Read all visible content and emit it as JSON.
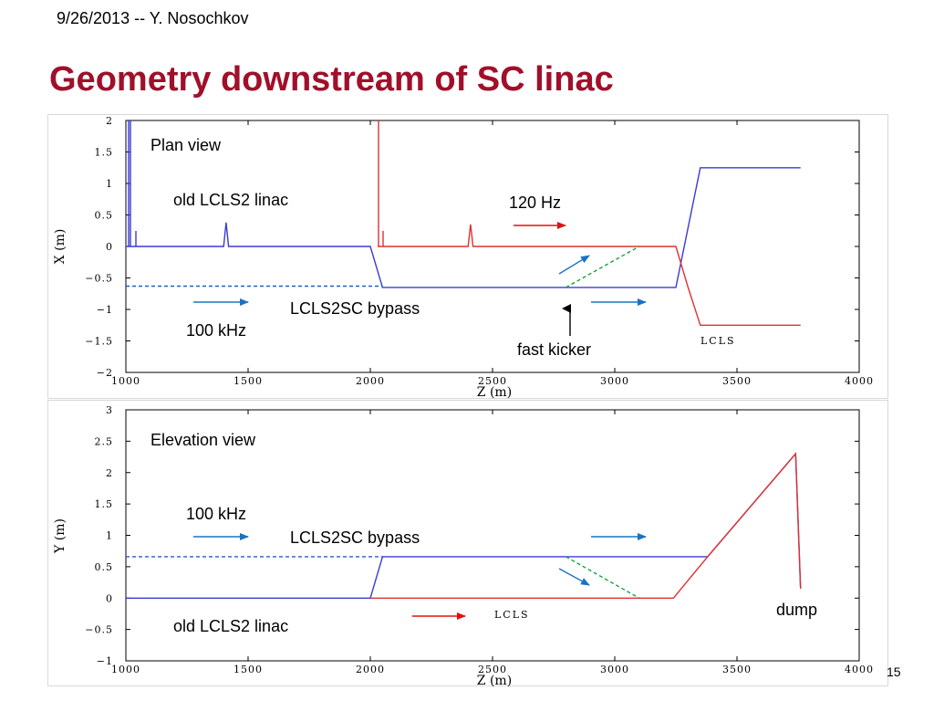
{
  "header": {
    "date_author": "9/26/2013  --  Y. Nosochkov"
  },
  "title": "Geometry downstream of SC linac",
  "page_number": "15",
  "colors": {
    "title": "#a0102a",
    "blue": "#3a3ad6",
    "red": "#e03030",
    "arrow_blue": "#1a73c2",
    "arrow_red": "#e01010",
    "dash_blue": "#1f5fc8",
    "dash_green": "#18a040"
  },
  "plan_view": {
    "panel_title": "Plan view",
    "xlabel": "Z (m)",
    "ylabel": "X (m)",
    "x_ticks": [
      "1000",
      "1500",
      "2000",
      "2500",
      "3000",
      "3500",
      "4000"
    ],
    "y_ticks": [
      "2",
      "1.5",
      "1",
      "0.5",
      "0",
      "-0.5",
      "-1",
      "-1.5",
      "-2"
    ],
    "labels": {
      "old_linac": "old LCLS2 linac",
      "rate_120": "120 Hz",
      "bypass": "LCLS2SC bypass",
      "rate_100k": "100 kHz",
      "fast_kicker": "fast kicker",
      "lcls": "LCLS"
    }
  },
  "elevation_view": {
    "panel_title": "Elevation view",
    "xlabel": "Z (m)",
    "ylabel": "Y (m)",
    "x_ticks": [
      "1000",
      "1500",
      "2000",
      "2500",
      "3000",
      "3500",
      "4000"
    ],
    "y_ticks": [
      "3",
      "2.5",
      "2",
      "1.5",
      "1",
      "0.5",
      "0",
      "-0.5",
      "-1"
    ],
    "labels": {
      "rate_100k": "100 kHz",
      "bypass": "LCLS2SC bypass",
      "old_linac": "old LCLS2 linac",
      "lcls": "LCLS",
      "dump": "dump"
    }
  },
  "chart_data": [
    {
      "type": "line",
      "title": "Plan view",
      "xlabel": "Z (m)",
      "ylabel": "X (m)",
      "xlim": [
        1000,
        4000
      ],
      "ylim": [
        -2,
        2
      ],
      "series": [
        {
          "color": "#3a3ad6",
          "x": [
            1000,
            1400,
            1410,
            1420,
            2000,
            2050,
            3250,
            3350,
            3760
          ],
          "y": [
            0,
            0,
            0.38,
            0,
            0,
            -0.65,
            -0.65,
            1.25,
            1.25
          ]
        },
        {
          "color": "#e03030",
          "x": [
            2030,
            2040,
            2400,
            2410,
            2420,
            3250,
            3300,
            3350,
            3760
          ],
          "y": [
            0,
            0,
            0,
            0.35,
            0,
            0,
            -0.65,
            -1.25,
            -1.25
          ]
        },
        {
          "color": "#1f5fc8",
          "style": "dashed",
          "x": [
            1000,
            2050
          ],
          "y": [
            -0.63,
            -0.63
          ]
        },
        {
          "color": "#18a040",
          "style": "dashed",
          "x": [
            2800,
            3100
          ],
          "y": [
            -0.65,
            0
          ]
        }
      ]
    },
    {
      "type": "line",
      "title": "Elevation view",
      "xlabel": "Z (m)",
      "ylabel": "Y (m)",
      "xlim": [
        1000,
        4000
      ],
      "ylim": [
        -1,
        3
      ],
      "series": [
        {
          "color": "#3a3ad6",
          "x": [
            1000,
            2000,
            2050,
            3380,
            3740,
            3760
          ],
          "y": [
            0,
            0,
            0.66,
            0.66,
            2.3,
            0.15
          ]
        },
        {
          "color": "#e03030",
          "x": [
            2000,
            3240,
            3380,
            3740,
            3760
          ],
          "y": [
            0,
            0,
            0.66,
            2.3,
            0.15
          ]
        },
        {
          "color": "#1f5fc8",
          "style": "dashed",
          "x": [
            1000,
            2050
          ],
          "y": [
            0.66,
            0.66
          ]
        },
        {
          "color": "#18a040",
          "style": "dashed",
          "x": [
            2800,
            3100
          ],
          "y": [
            0.66,
            0
          ]
        }
      ]
    }
  ]
}
